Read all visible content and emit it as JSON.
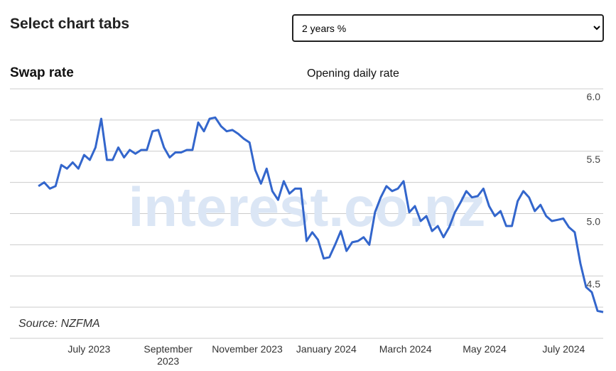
{
  "header": {
    "title": "Select chart tabs",
    "select_option": "2 years %"
  },
  "chart_data": {
    "type": "line",
    "title": "Swap rate",
    "subtitle": "Opening daily rate",
    "source": "Source: NZFMA",
    "watermark": "interest.co.nz",
    "xlim": [
      "2023-05",
      "2024-08"
    ],
    "xticks": [
      {
        "value": "2023-07",
        "label": "July 2023"
      },
      {
        "value": "2023-09",
        "label": "September 2023"
      },
      {
        "value": "2023-11",
        "label": "November 2023"
      },
      {
        "value": "2024-01",
        "label": "January 2024"
      },
      {
        "value": "2024-03",
        "label": "March 2024"
      },
      {
        "value": "2024-05",
        "label": "May 2024"
      },
      {
        "value": "2024-07",
        "label": "July 2024"
      }
    ],
    "ylim": [
      4.0,
      6.0
    ],
    "yticks": [
      {
        "value": 4.5,
        "label": "4.5"
      },
      {
        "value": 5.0,
        "label": "5.0"
      },
      {
        "value": 5.5,
        "label": "5.5"
      },
      {
        "value": 6.0,
        "label": "6.0"
      }
    ],
    "minor_grid": [
      4.0,
      4.25,
      4.75,
      5.25,
      5.75
    ],
    "grid": true,
    "series": [
      {
        "name": "2 years %",
        "color": "#3366cc",
        "values": [
          null,
          null,
          null,
          null,
          null,
          5.22,
          5.25,
          5.2,
          5.22,
          5.39,
          5.36,
          5.41,
          5.36,
          5.47,
          5.43,
          5.53,
          5.76,
          5.43,
          5.43,
          5.53,
          5.45,
          5.51,
          5.48,
          5.51,
          5.51,
          5.66,
          5.67,
          5.53,
          5.45,
          5.49,
          5.49,
          5.51,
          5.51,
          5.73,
          5.66,
          5.76,
          5.77,
          5.7,
          5.66,
          5.67,
          5.64,
          5.6,
          5.57,
          5.35,
          5.24,
          5.36,
          5.18,
          5.11,
          5.26,
          5.16,
          5.2,
          5.2,
          4.78,
          4.85,
          4.79,
          4.64,
          4.65,
          4.75,
          4.86,
          4.7,
          4.77,
          4.78,
          4.81,
          4.75,
          5.01,
          5.13,
          5.22,
          5.18,
          5.2,
          5.26,
          5.01,
          5.06,
          4.94,
          4.98,
          4.86,
          4.9,
          4.81,
          4.89,
          5.01,
          5.09,
          5.18,
          5.13,
          5.14,
          5.2,
          5.06,
          4.98,
          5.02,
          4.9,
          4.9,
          5.1,
          5.18,
          5.13,
          5.02,
          5.07,
          4.98,
          4.94,
          4.95,
          4.96,
          4.89,
          4.85,
          4.6,
          4.41,
          4.37,
          4.22,
          4.21
        ]
      }
    ]
  }
}
